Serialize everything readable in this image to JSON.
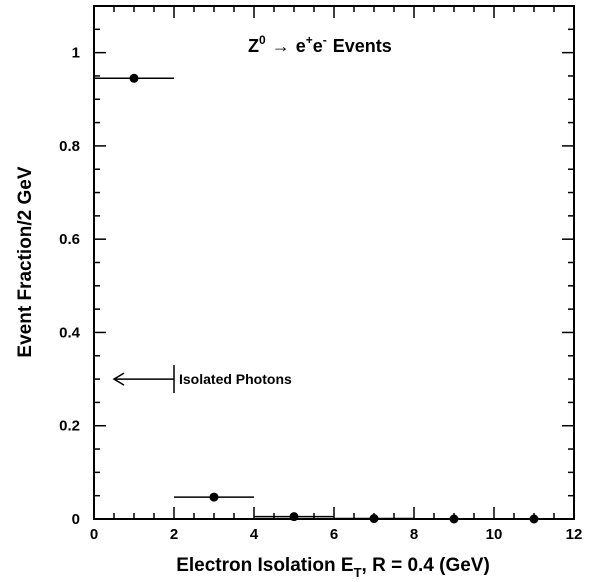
{
  "chart_data": {
    "type": "scatter",
    "title": "Z0 → e+e- Events",
    "title_parts": {
      "z": "Z",
      "z_sup": "0",
      "arrow": "→",
      "e1": "e",
      "e1_sup": "+",
      "e2": "e",
      "e2_sup": "-",
      "tail": "Events"
    },
    "xlabel": "Electron Isolation ET, R = 0.4 (GeV)",
    "xlabel_parts": {
      "pre": "Electron Isolation E",
      "sub": "T",
      "post": ", R = 0.4  (GeV)"
    },
    "ylabel": "Event Fraction/2 GeV",
    "xlim": [
      0,
      12
    ],
    "ylim": [
      0,
      1.1
    ],
    "xticks": [
      0,
      2,
      4,
      6,
      8,
      10,
      12
    ],
    "xtick_labels": [
      "0",
      "2",
      "4",
      "6",
      "8",
      "10",
      "12"
    ],
    "yticks": [
      0,
      0.2,
      0.4,
      0.6,
      0.8,
      1
    ],
    "ytick_labels": [
      "0",
      "0.2",
      "0.4",
      "0.6",
      "0.8",
      "1"
    ],
    "grid": false,
    "series": [
      {
        "points": [
          {
            "x": 1,
            "y": 0.945,
            "xerr": 1
          },
          {
            "x": 3,
            "y": 0.047,
            "xerr": 1
          },
          {
            "x": 5,
            "y": 0.005,
            "xerr": 1
          },
          {
            "x": 7,
            "y": 0.001,
            "xerr": 1
          },
          {
            "x": 9,
            "y": 0.0,
            "xerr": 1
          },
          {
            "x": 11,
            "y": 0.0,
            "xerr": 1
          }
        ]
      }
    ],
    "annotations": [
      {
        "text": "Isolated Photons",
        "type": "arrow-left",
        "x_from": 2,
        "x_to": 0.5,
        "y": 0.3
      }
    ]
  }
}
